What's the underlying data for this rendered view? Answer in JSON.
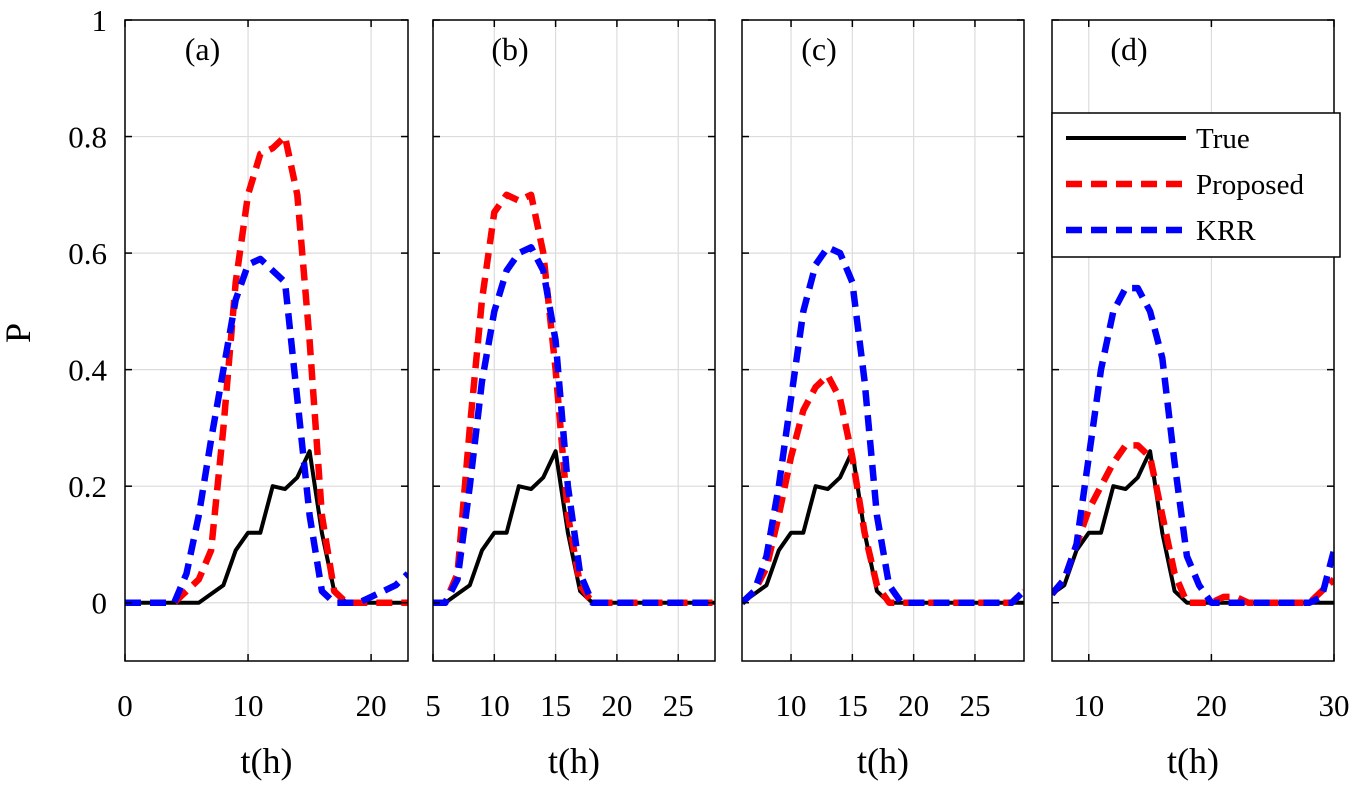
{
  "colors": {
    "true": "#000000",
    "proposed": "#ff0000",
    "krr": "#0000ff",
    "grid": "#dcdcdc"
  },
  "ylabel": "P",
  "legend": {
    "placement": "top-right of panel (d)",
    "entries": [
      {
        "key": "true",
        "label": "True"
      },
      {
        "key": "proposed",
        "label": "Proposed"
      },
      {
        "key": "krr",
        "label": "KRR"
      }
    ]
  },
  "chart_data": [
    {
      "type": "line",
      "title": "(a)",
      "xlabel": "t(h)",
      "ylabel": "P",
      "xlim": [
        0,
        23
      ],
      "ylim": [
        -0.1,
        1
      ],
      "xticks": [
        0,
        10,
        20
      ],
      "yticks": [
        0,
        0.2,
        0.4,
        0.6,
        0.8,
        1
      ],
      "ytick_labels": [
        "0",
        "0.2",
        "0.4",
        "0.6",
        "0.8",
        "1"
      ],
      "grid": true,
      "series": [
        {
          "name": "True",
          "key": "true",
          "x": [
            0,
            1,
            2,
            3,
            4,
            5,
            6,
            7,
            8,
            9,
            10,
            11,
            12,
            13,
            14,
            15,
            16,
            17,
            18,
            19,
            20,
            21,
            22,
            23
          ],
          "values": [
            0,
            0,
            0,
            0,
            0,
            0,
            0,
            0.015,
            0.03,
            0.09,
            0.12,
            0.12,
            0.2,
            0.195,
            0.215,
            0.26,
            0.12,
            0.02,
            0,
            0,
            0,
            0,
            0,
            0
          ]
        },
        {
          "name": "Proposed",
          "key": "proposed",
          "x": [
            0,
            1,
            2,
            3,
            4,
            5,
            6,
            7,
            8,
            9,
            10,
            11,
            12,
            13,
            14,
            15,
            16,
            17,
            18,
            19,
            20,
            21,
            22,
            23
          ],
          "values": [
            0,
            0,
            0,
            0,
            0,
            0.02,
            0.04,
            0.09,
            0.3,
            0.55,
            0.7,
            0.77,
            0.78,
            0.8,
            0.7,
            0.45,
            0.15,
            0.02,
            0,
            0,
            0,
            0,
            0,
            0
          ]
        },
        {
          "name": "KRR",
          "key": "krr",
          "x": [
            0,
            1,
            2,
            3,
            4,
            5,
            6,
            7,
            8,
            9,
            10,
            11,
            12,
            13,
            14,
            15,
            16,
            17,
            18,
            19,
            20,
            21,
            22,
            23
          ],
          "values": [
            0,
            0,
            0,
            0,
            0,
            0.05,
            0.15,
            0.28,
            0.4,
            0.52,
            0.58,
            0.59,
            0.57,
            0.55,
            0.35,
            0.15,
            0.02,
            0,
            0,
            0,
            0.01,
            0.02,
            0.03,
            0.05
          ]
        }
      ]
    },
    {
      "type": "line",
      "title": "(b)",
      "xlabel": "t(h)",
      "ylabel": "P",
      "xlim": [
        5,
        28
      ],
      "ylim": [
        -0.1,
        1
      ],
      "xticks": [
        5,
        10,
        15,
        20,
        25
      ],
      "yticks": [
        0,
        0.2,
        0.4,
        0.6,
        0.8,
        1
      ],
      "grid": true,
      "series": [
        {
          "name": "True",
          "key": "true",
          "x": [
            5,
            6,
            7,
            8,
            9,
            10,
            11,
            12,
            13,
            14,
            15,
            16,
            17,
            18,
            19,
            20,
            21,
            22,
            23,
            24,
            25,
            26,
            27,
            28
          ],
          "values": [
            0,
            0,
            0.015,
            0.03,
            0.09,
            0.12,
            0.12,
            0.2,
            0.195,
            0.215,
            0.26,
            0.12,
            0.02,
            0,
            0,
            0,
            0,
            0,
            0,
            0,
            0,
            0,
            0,
            0
          ]
        },
        {
          "name": "Proposed",
          "key": "proposed",
          "x": [
            5,
            6,
            7,
            8,
            9,
            10,
            11,
            12,
            13,
            14,
            15,
            16,
            17,
            18,
            19,
            20,
            21,
            22,
            23,
            24,
            25,
            26,
            27,
            28
          ],
          "values": [
            0,
            0,
            0.05,
            0.3,
            0.52,
            0.67,
            0.7,
            0.69,
            0.7,
            0.6,
            0.4,
            0.15,
            0.03,
            0,
            0,
            0,
            0,
            0,
            0,
            0,
            0,
            0,
            0,
            0
          ]
        },
        {
          "name": "KRR",
          "key": "krr",
          "x": [
            5,
            6,
            7,
            8,
            9,
            10,
            11,
            12,
            13,
            14,
            15,
            16,
            17,
            18,
            19,
            20,
            21,
            22,
            23,
            24,
            25,
            26,
            27,
            28
          ],
          "values": [
            0,
            0,
            0.04,
            0.2,
            0.38,
            0.5,
            0.57,
            0.6,
            0.61,
            0.57,
            0.45,
            0.2,
            0.05,
            0,
            0,
            0,
            0,
            0,
            0,
            0,
            0,
            0,
            0,
            0
          ]
        }
      ]
    },
    {
      "type": "line",
      "title": "(c)",
      "xlabel": "t(h)",
      "ylabel": "P",
      "xlim": [
        6,
        29
      ],
      "ylim": [
        -0.1,
        1
      ],
      "xticks": [
        10,
        15,
        20,
        25
      ],
      "yticks": [
        0,
        0.2,
        0.4,
        0.6,
        0.8,
        1
      ],
      "grid": true,
      "series": [
        {
          "name": "True",
          "key": "true",
          "x": [
            6,
            7,
            8,
            9,
            10,
            11,
            12,
            13,
            14,
            15,
            16,
            17,
            18,
            19,
            20,
            21,
            22,
            23,
            24,
            25,
            26,
            27,
            28,
            29
          ],
          "values": [
            0,
            0.015,
            0.03,
            0.09,
            0.12,
            0.12,
            0.2,
            0.195,
            0.215,
            0.26,
            0.12,
            0.02,
            0,
            0,
            0,
            0,
            0,
            0,
            0,
            0,
            0,
            0,
            0,
            0
          ]
        },
        {
          "name": "Proposed",
          "key": "proposed",
          "x": [
            6,
            7,
            8,
            9,
            10,
            11,
            12,
            13,
            14,
            15,
            16,
            17,
            18,
            19,
            20,
            21,
            22,
            23,
            24,
            25,
            26,
            27,
            28,
            29
          ],
          "values": [
            0,
            0.02,
            0.06,
            0.15,
            0.25,
            0.33,
            0.37,
            0.39,
            0.35,
            0.25,
            0.12,
            0.03,
            0,
            0,
            0,
            0,
            0,
            0,
            0,
            0,
            0,
            0,
            0,
            0.02
          ]
        },
        {
          "name": "KRR",
          "key": "krr",
          "x": [
            6,
            7,
            8,
            9,
            10,
            11,
            12,
            13,
            14,
            15,
            16,
            17,
            18,
            19,
            20,
            21,
            22,
            23,
            24,
            25,
            26,
            27,
            28,
            29
          ],
          "values": [
            0,
            0.02,
            0.08,
            0.2,
            0.35,
            0.5,
            0.58,
            0.61,
            0.6,
            0.55,
            0.38,
            0.15,
            0.03,
            0,
            0,
            0,
            0,
            0,
            0,
            0,
            0,
            0,
            0,
            0.02
          ]
        }
      ]
    },
    {
      "type": "line",
      "title": "(d)",
      "xlabel": "t(h)",
      "ylabel": "P",
      "xlim": [
        7,
        30
      ],
      "ylim": [
        -0.1,
        1
      ],
      "xticks": [
        10,
        20,
        30
      ],
      "yticks": [
        0,
        0.2,
        0.4,
        0.6,
        0.8,
        1
      ],
      "grid": true,
      "series": [
        {
          "name": "True",
          "key": "true",
          "x": [
            7,
            8,
            9,
            10,
            11,
            12,
            13,
            14,
            15,
            16,
            17,
            18,
            19,
            20,
            21,
            22,
            23,
            24,
            25,
            26,
            27,
            28,
            29,
            30
          ],
          "values": [
            0.015,
            0.03,
            0.09,
            0.12,
            0.12,
            0.2,
            0.195,
            0.215,
            0.26,
            0.12,
            0.02,
            0,
            0,
            0,
            0,
            0,
            0,
            0,
            0,
            0,
            0,
            0,
            0,
            0
          ]
        },
        {
          "name": "Proposed",
          "key": "proposed",
          "x": [
            7,
            8,
            9,
            10,
            11,
            12,
            13,
            14,
            15,
            16,
            17,
            18,
            19,
            20,
            21,
            22,
            23,
            24,
            25,
            26,
            27,
            28,
            29,
            30
          ],
          "values": [
            0.015,
            0.04,
            0.1,
            0.16,
            0.2,
            0.24,
            0.27,
            0.27,
            0.25,
            0.15,
            0.05,
            0,
            0,
            0,
            0.01,
            0.01,
            0,
            0,
            0,
            0,
            0,
            0,
            0.02,
            0.04
          ]
        },
        {
          "name": "KRR",
          "key": "krr",
          "x": [
            7,
            8,
            9,
            10,
            11,
            12,
            13,
            14,
            15,
            16,
            17,
            18,
            19,
            20,
            21,
            22,
            23,
            24,
            25,
            26,
            27,
            28,
            29,
            30
          ],
          "values": [
            0.015,
            0.04,
            0.1,
            0.25,
            0.4,
            0.5,
            0.54,
            0.54,
            0.5,
            0.42,
            0.24,
            0.08,
            0.03,
            0,
            0,
            0,
            0,
            0,
            0,
            0,
            0,
            0,
            0.01,
            0.09
          ]
        }
      ]
    }
  ]
}
